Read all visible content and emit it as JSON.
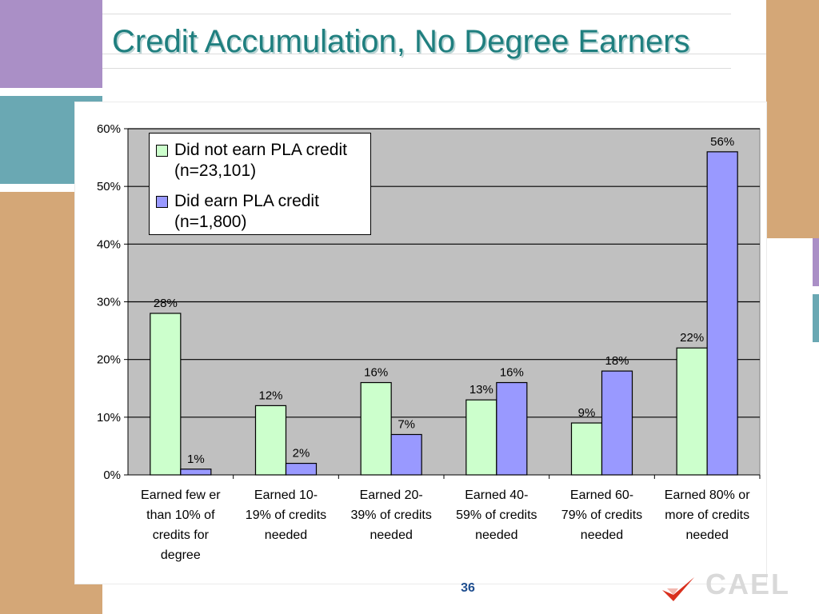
{
  "slide": {
    "title": "Credit Accumulation, No Degree Earners",
    "page_number": "36"
  },
  "colors": {
    "title": "#1f7f7f",
    "accent_purple": "#aa8fc6",
    "accent_teal": "#6aa8b3",
    "accent_tan": "#d4a777",
    "series_not_earned": "#ccffcc",
    "series_earned": "#9999ff",
    "plot_background": "#c0c0c0"
  },
  "logo": {
    "icon": "red-checkmark-logo-icon",
    "word": "CAEL"
  },
  "chart_data": {
    "type": "bar",
    "categories": [
      "Earned fewer than 10% of credits for degree",
      "Earned 10-19% of credits needed",
      "Earned 20-39% of credits needed",
      "Earned 40-59% of credits needed",
      "Earned 60-79% of credits needed",
      "Earned 80% or more of credits needed"
    ],
    "category_lines": [
      [
        "Earned few er",
        "than 10% of",
        "credits for",
        "degree"
      ],
      [
        "Earned 10-",
        "19% of credits",
        "needed"
      ],
      [
        "Earned 20-",
        "39% of credits",
        "needed"
      ],
      [
        "Earned 40-",
        "59% of credits",
        "needed"
      ],
      [
        "Earned 60-",
        "79% of credits",
        "needed"
      ],
      [
        "Earned 80% or",
        "more of credits",
        "needed"
      ]
    ],
    "series": [
      {
        "name": "Did not earn PLA credit (n=23,101)",
        "legend_lines": "Did not earn PLA credit\n(n=23,101)",
        "color": "#ccffcc",
        "values": [
          28,
          12,
          16,
          13,
          9,
          22
        ],
        "labels": [
          "28%",
          "12%",
          "16%",
          "13%",
          "9%",
          "22%"
        ]
      },
      {
        "name": "Did earn PLA credit (n=1,800)",
        "legend_lines": "Did earn PLA credit\n(n=1,800)",
        "color": "#9999ff",
        "values": [
          1,
          2,
          7,
          16,
          18,
          56
        ],
        "labels": [
          "1%",
          "2%",
          "7%",
          "16%",
          "18%",
          "56%"
        ]
      }
    ],
    "ylim": [
      0,
      60
    ],
    "yticks": [
      0,
      10,
      20,
      30,
      40,
      50,
      60
    ],
    "ytick_labels": [
      "0%",
      "10%",
      "20%",
      "30%",
      "40%",
      "50%",
      "60%"
    ],
    "grid": true,
    "legend_position": "top-left",
    "title": "",
    "xlabel": "",
    "ylabel": ""
  }
}
